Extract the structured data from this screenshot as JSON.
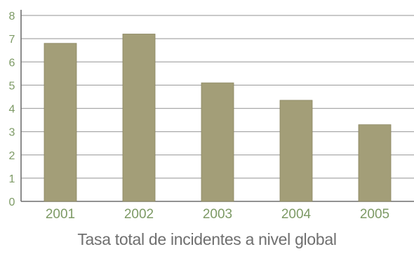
{
  "chart_data": {
    "type": "bar",
    "title": "Tasa total de incidentes a nivel global",
    "categories": [
      "2001",
      "2002",
      "2003",
      "2004",
      "2005"
    ],
    "values": [
      6.8,
      7.2,
      5.1,
      4.35,
      3.3
    ],
    "ylim": [
      0,
      8
    ],
    "yticks": [
      "0",
      "1",
      "2",
      "3",
      "4",
      "5",
      "6",
      "7",
      "8"
    ],
    "xlabel": "",
    "ylabel": "",
    "grid": true,
    "legend": "none",
    "colors": {
      "bar": "#a39e78",
      "bar_edge": "#8a8560",
      "grid": "#a9a9a9",
      "axis": "#6f6f6f",
      "tick_label": "#7d9a65"
    }
  }
}
